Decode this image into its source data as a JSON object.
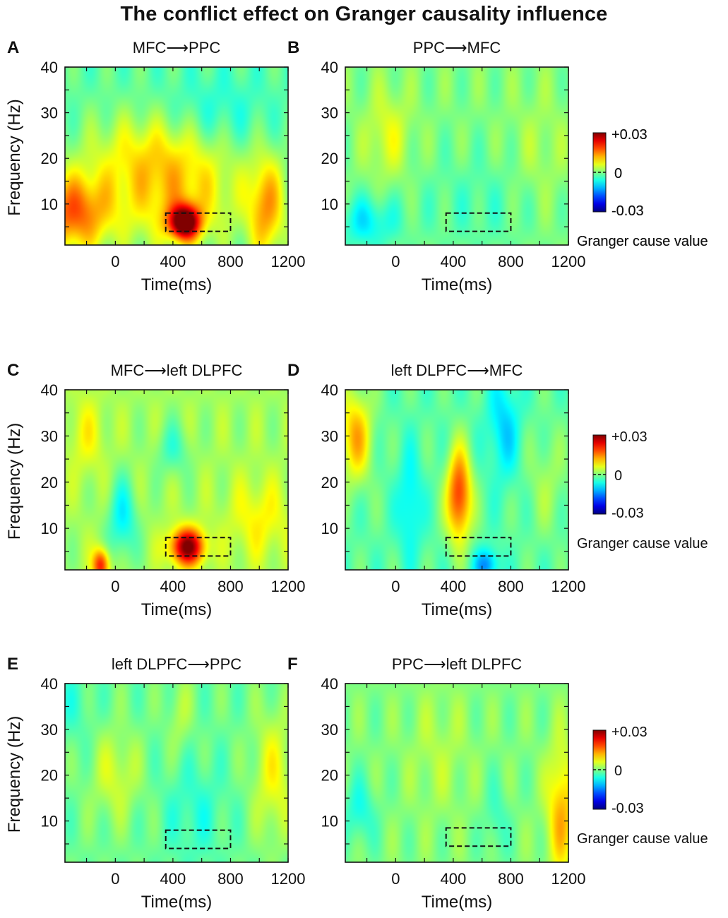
{
  "figure": {
    "title": "The conflict effect on Granger causality influence"
  },
  "chart_data": [
    {
      "type": "heatmap",
      "panel_letter": "A",
      "title": "MFC⟶PPC",
      "xlabel": "Time(ms)",
      "ylabel": "Frequency (Hz)",
      "xlim": [
        -350,
        1200
      ],
      "ylim": [
        1,
        40
      ],
      "xticks": [
        0,
        400,
        800,
        1200
      ],
      "yticks": [
        10,
        20,
        30,
        40
      ],
      "background_value": -0.002,
      "features": [
        {
          "t": -300,
          "f": 8,
          "st": 180,
          "sf": 6,
          "v": 0.018
        },
        {
          "t": 1050,
          "f": 9,
          "st": 90,
          "sf": 8,
          "v": 0.014
        },
        {
          "t": 400,
          "f": 13,
          "st": 350,
          "sf": 9,
          "v": 0.012
        },
        {
          "t": 180,
          "f": 22,
          "st": 300,
          "sf": 6,
          "v": 0.005
        },
        {
          "t": 480,
          "f": 6,
          "st": 75,
          "sf": 2.6,
          "v": 0.034
        },
        {
          "t": 700,
          "f": 30,
          "st": 250,
          "sf": 6,
          "v": -0.004
        }
      ],
      "roi": {
        "t0": 350,
        "t1": 800,
        "f0": 4,
        "f1": 8
      },
      "colorbar": {
        "max_label": "+0.03",
        "mid_label": "0",
        "min_label": "-0.03",
        "label": "Granger cause value",
        "vmin": -0.03,
        "vmax": 0.03
      }
    },
    {
      "type": "heatmap",
      "panel_letter": "B",
      "title": "PPC⟶MFC",
      "xlabel": "Time(ms)",
      "ylabel": "",
      "xlim": [
        -350,
        1200
      ],
      "ylim": [
        1,
        40
      ],
      "xticks": [
        0,
        400,
        800,
        1200
      ],
      "yticks": [
        10,
        20,
        30,
        40
      ],
      "background_value": 0.0,
      "features": [
        {
          "t": -50,
          "f": 25,
          "st": 110,
          "sf": 7,
          "v": 0.006
        },
        {
          "t": -200,
          "f": 6,
          "st": 150,
          "sf": 4,
          "v": -0.008
        },
        {
          "t": 600,
          "f": 10,
          "st": 350,
          "sf": 8,
          "v": -0.003
        },
        {
          "t": 1000,
          "f": 20,
          "st": 150,
          "sf": 10,
          "v": 0.003
        }
      ],
      "roi": {
        "t0": 350,
        "t1": 800,
        "f0": 4,
        "f1": 8
      },
      "colorbar": {
        "max_label": "+0.03",
        "mid_label": "0",
        "min_label": "-0.03",
        "label": "Granger cause value",
        "vmin": -0.03,
        "vmax": 0.03
      }
    },
    {
      "type": "heatmap",
      "panel_letter": "C",
      "title": "MFC⟶left DLPFC",
      "xlabel": "Time(ms)",
      "ylabel": "Frequency (Hz)",
      "xlim": [
        -350,
        1200
      ],
      "ylim": [
        1,
        40
      ],
      "xticks": [
        0,
        400,
        800,
        1200
      ],
      "yticks": [
        10,
        20,
        30,
        40
      ],
      "background_value": 0.002,
      "features": [
        {
          "t": 500,
          "f": 6,
          "st": 85,
          "sf": 2.8,
          "v": 0.028
        },
        {
          "t": -100,
          "f": 2,
          "st": 40,
          "sf": 2.5,
          "v": 0.02
        },
        {
          "t": 50,
          "f": 12,
          "st": 70,
          "sf": 6,
          "v": -0.01
        },
        {
          "t": 400,
          "f": 27,
          "st": 80,
          "sf": 4,
          "v": -0.006
        },
        {
          "t": -200,
          "f": 30,
          "st": 90,
          "sf": 6,
          "v": 0.005
        },
        {
          "t": 1000,
          "f": 12,
          "st": 150,
          "sf": 6,
          "v": 0.006
        }
      ],
      "roi": {
        "t0": 350,
        "t1": 800,
        "f0": 4,
        "f1": 8
      },
      "colorbar": null
    },
    {
      "type": "heatmap",
      "panel_letter": "D",
      "title": "left DLPFC⟶MFC",
      "xlabel": "Time(ms)",
      "ylabel": "",
      "xlim": [
        -350,
        1200
      ],
      "ylim": [
        1,
        40
      ],
      "xticks": [
        0,
        400,
        800,
        1200
      ],
      "yticks": [
        10,
        20,
        30,
        40
      ],
      "background_value": -0.002,
      "features": [
        {
          "t": -280,
          "f": 30,
          "st": 80,
          "sf": 7,
          "v": 0.014
        },
        {
          "t": 440,
          "f": 17,
          "st": 60,
          "sf": 7,
          "v": 0.022
        },
        {
          "t": 750,
          "f": 32,
          "st": 80,
          "sf": 8,
          "v": -0.008
        },
        {
          "t": 100,
          "f": 15,
          "st": 60,
          "sf": 8,
          "v": -0.007
        },
        {
          "t": 630,
          "f": 2,
          "st": 60,
          "sf": 2.5,
          "v": -0.012
        },
        {
          "t": 1050,
          "f": 20,
          "st": 100,
          "sf": 8,
          "v": 0.004
        }
      ],
      "roi": {
        "t0": 350,
        "t1": 800,
        "f0": 4,
        "f1": 8
      },
      "colorbar": {
        "max_label": "+0.03",
        "mid_label": "0",
        "min_label": "-0.03",
        "label": "Granger cause value",
        "vmin": -0.03,
        "vmax": 0.03
      }
    },
    {
      "type": "heatmap",
      "panel_letter": "E",
      "title": "left DLPFC⟶PPC",
      "xlabel": "Time(ms)",
      "ylabel": "Frequency (Hz)",
      "xlim": [
        -350,
        1200
      ],
      "ylim": [
        1,
        40
      ],
      "xticks": [
        0,
        400,
        800,
        1200
      ],
      "yticks": [
        10,
        20,
        30,
        40
      ],
      "background_value": -0.001,
      "features": [
        {
          "t": 1100,
          "f": 20,
          "st": 100,
          "sf": 10,
          "v": 0.008
        },
        {
          "t": 0,
          "f": 20,
          "st": 120,
          "sf": 7,
          "v": 0.006
        },
        {
          "t": 450,
          "f": 33,
          "st": 60,
          "sf": 6,
          "v": 0.004
        },
        {
          "t": 550,
          "f": 12,
          "st": 150,
          "sf": 8,
          "v": -0.004
        },
        {
          "t": -300,
          "f": 35,
          "st": 100,
          "sf": 6,
          "v": -0.003
        }
      ],
      "roi": {
        "t0": 350,
        "t1": 800,
        "f0": 4,
        "f1": 8
      },
      "colorbar": null
    },
    {
      "type": "heatmap",
      "panel_letter": "F",
      "title": "PPC⟶left DLPFC",
      "xlabel": "Time(ms)",
      "ylabel": "",
      "xlim": [
        -350,
        1200
      ],
      "ylim": [
        1,
        40
      ],
      "xticks": [
        0,
        400,
        800,
        1200
      ],
      "yticks": [
        10,
        20,
        30,
        40
      ],
      "background_value": 0.0,
      "features": [
        {
          "t": 1150,
          "f": 12,
          "st": 70,
          "sf": 10,
          "v": 0.012
        },
        {
          "t": -250,
          "f": 12,
          "st": 80,
          "sf": 5,
          "v": -0.006
        },
        {
          "t": 300,
          "f": 25,
          "st": 150,
          "sf": 10,
          "v": 0.003
        },
        {
          "t": 700,
          "f": 10,
          "st": 60,
          "sf": 6,
          "v": -0.004
        }
      ],
      "roi": {
        "t0": 350,
        "t1": 800,
        "f0": 4.5,
        "f1": 8.5
      },
      "colorbar": {
        "max_label": "+0.03",
        "mid_label": "0",
        "min_label": "-0.03",
        "label": "Granger cause value",
        "vmin": -0.03,
        "vmax": 0.03
      }
    }
  ]
}
